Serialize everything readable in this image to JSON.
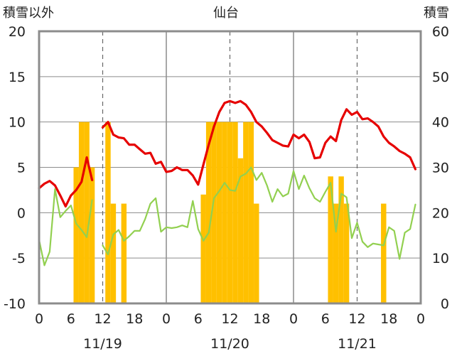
{
  "chart_data": {
    "type": "line",
    "title": "仙台",
    "ylabel_left": "積雪以外",
    "ylabel_right": "積雪",
    "ylim_left": [
      -10,
      20
    ],
    "ylim_right": [
      0,
      60
    ],
    "yticks_left": [
      "20",
      "15",
      "10",
      "5",
      "0",
      "-5",
      "-10"
    ],
    "yticks_right": [
      "60",
      "50",
      "40",
      "30",
      "20",
      "10",
      "0"
    ],
    "xlim": [
      0,
      72
    ],
    "xticks": [
      {
        "x": 0,
        "label": "0"
      },
      {
        "x": 6,
        "label": "6"
      },
      {
        "x": 12,
        "label": "12"
      },
      {
        "x": 18,
        "label": "18"
      },
      {
        "x": 24,
        "label": "0"
      },
      {
        "x": 30,
        "label": "6"
      },
      {
        "x": 36,
        "label": "12"
      },
      {
        "x": 42,
        "label": "18"
      },
      {
        "x": 48,
        "label": "0"
      },
      {
        "x": 54,
        "label": "6"
      },
      {
        "x": 60,
        "label": "12"
      },
      {
        "x": 66,
        "label": "18"
      },
      {
        "x": 72,
        "label": "0"
      }
    ],
    "date_labels": [
      {
        "x": 12,
        "label": "11/19"
      },
      {
        "x": 36,
        "label": "11/20"
      },
      {
        "x": 60,
        "label": "11/21"
      }
    ],
    "day_boundaries": [
      24,
      48
    ],
    "noon_lines": [
      12,
      36,
      60
    ],
    "series": [
      {
        "color": "#e60000",
        "axis": "left",
        "segments": [
          [
            [
              0,
              2.7
            ],
            [
              1,
              3.2
            ],
            [
              2,
              3.5
            ],
            [
              3,
              3.0
            ],
            [
              4,
              1.9
            ],
            [
              5,
              0.7
            ],
            [
              6,
              1.9
            ],
            [
              7,
              2.5
            ],
            [
              8,
              3.4
            ],
            [
              9,
              6.1
            ],
            [
              10,
              3.6
            ]
          ],
          [
            [
              12,
              9.4
            ],
            [
              13,
              10.0
            ],
            [
              14,
              8.6
            ],
            [
              15,
              8.3
            ],
            [
              16,
              8.2
            ],
            [
              17,
              7.5
            ],
            [
              18,
              7.5
            ],
            [
              19,
              7.0
            ],
            [
              20,
              6.5
            ],
            [
              21,
              6.6
            ],
            [
              22,
              5.4
            ],
            [
              23,
              5.6
            ],
            [
              24,
              4.5
            ],
            [
              25,
              4.6
            ],
            [
              26,
              5.0
            ],
            [
              27,
              4.7
            ],
            [
              28,
              4.7
            ],
            [
              29,
              4.1
            ],
            [
              30,
              3.1
            ],
            [
              31,
              5.3
            ],
            [
              32,
              7.5
            ],
            [
              33,
              9.5
            ],
            [
              34,
              11.1
            ],
            [
              35,
              12.1
            ],
            [
              36,
              12.3
            ],
            [
              37,
              12.1
            ],
            [
              38,
              12.3
            ],
            [
              39,
              11.9
            ],
            [
              40,
              11.1
            ],
            [
              41,
              10.0
            ],
            [
              42,
              9.5
            ],
            [
              43,
              8.8
            ],
            [
              44,
              8.0
            ],
            [
              45,
              7.7
            ],
            [
              46,
              7.4
            ],
            [
              47,
              7.3
            ],
            [
              48,
              8.6
            ],
            [
              49,
              8.2
            ],
            [
              50,
              8.6
            ],
            [
              51,
              7.8
            ],
            [
              52,
              6.0
            ],
            [
              53,
              6.1
            ],
            [
              54,
              7.7
            ],
            [
              55,
              8.4
            ],
            [
              56,
              7.9
            ],
            [
              57,
              10.2
            ],
            [
              58,
              11.4
            ],
            [
              59,
              10.8
            ],
            [
              60,
              11.1
            ],
            [
              61,
              10.3
            ],
            [
              62,
              10.4
            ],
            [
              63,
              10.0
            ],
            [
              64,
              9.5
            ],
            [
              65,
              8.4
            ],
            [
              66,
              7.7
            ],
            [
              67,
              7.3
            ],
            [
              68,
              6.8
            ],
            [
              69,
              6.5
            ],
            [
              70,
              6.1
            ],
            [
              71,
              4.8
            ]
          ]
        ]
      },
      {
        "color": "#92d050",
        "axis": "left",
        "segments": [
          [
            [
              0,
              -3.0
            ],
            [
              1,
              -5.8
            ],
            [
              2,
              -4.3
            ],
            [
              3,
              2.6
            ],
            [
              4,
              -0.5
            ],
            [
              5,
              0.2
            ],
            [
              6,
              0.8
            ],
            [
              7,
              -1.2
            ],
            [
              8,
              -1.9
            ],
            [
              9,
              -2.7
            ],
            [
              10,
              1.4
            ]
          ],
          [
            [
              12,
              -3.6
            ],
            [
              13,
              -4.6
            ],
            [
              14,
              -2.4
            ],
            [
              15,
              -1.9
            ],
            [
              16,
              -3.1
            ],
            [
              17,
              -2.6
            ],
            [
              18,
              -2.0
            ],
            [
              19,
              -2.0
            ],
            [
              20,
              -0.7
            ],
            [
              21,
              1.0
            ],
            [
              22,
              1.6
            ],
            [
              23,
              -2.1
            ],
            [
              24,
              -1.6
            ],
            [
              25,
              -1.7
            ],
            [
              26,
              -1.6
            ],
            [
              27,
              -1.4
            ],
            [
              28,
              -1.6
            ],
            [
              29,
              1.3
            ],
            [
              30,
              -1.8
            ],
            [
              31,
              -3.1
            ],
            [
              32,
              -2.2
            ],
            [
              33,
              1.6
            ],
            [
              34,
              2.4
            ],
            [
              35,
              3.3
            ],
            [
              36,
              2.5
            ],
            [
              37,
              2.4
            ],
            [
              38,
              4.0
            ],
            [
              39,
              4.3
            ],
            [
              40,
              5.0
            ],
            [
              41,
              3.6
            ],
            [
              42,
              4.4
            ],
            [
              43,
              3.0
            ],
            [
              44,
              1.2
            ],
            [
              45,
              2.6
            ],
            [
              46,
              1.8
            ],
            [
              47,
              2.1
            ],
            [
              48,
              4.6
            ],
            [
              49,
              2.6
            ],
            [
              50,
              4.1
            ],
            [
              51,
              2.7
            ],
            [
              52,
              1.6
            ],
            [
              53,
              1.2
            ],
            [
              54,
              2.3
            ],
            [
              55,
              3.3
            ],
            [
              56,
              -2.1
            ],
            [
              57,
              2.1
            ],
            [
              58,
              1.7
            ],
            [
              59,
              -2.8
            ],
            [
              60,
              -1.1
            ],
            [
              61,
              -3.2
            ],
            [
              62,
              -3.8
            ],
            [
              63,
              -3.4
            ],
            [
              64,
              -3.5
            ],
            [
              65,
              -3.6
            ],
            [
              66,
              -1.6
            ],
            [
              67,
              -2.0
            ],
            [
              68,
              -5.1
            ],
            [
              69,
              -2.2
            ],
            [
              70,
              -1.8
            ],
            [
              71,
              0.9
            ]
          ]
        ]
      },
      {
        "color": "#7030a0",
        "axis": "left",
        "segments": [
          [
            [
              0,
              -10
            ],
            [
              71.5,
              -10
            ]
          ]
        ]
      }
    ],
    "bars": {
      "color": "#ffc000",
      "axis": "right",
      "data": [
        {
          "x": 7,
          "v": 30
        },
        {
          "x": 8,
          "v": 40
        },
        {
          "x": 9,
          "v": 40
        },
        {
          "x": 10,
          "v": 30
        },
        {
          "x": 13,
          "v": 40
        },
        {
          "x": 14,
          "v": 22
        },
        {
          "x": 16,
          "v": 22
        },
        {
          "x": 31,
          "v": 24
        },
        {
          "x": 32,
          "v": 40
        },
        {
          "x": 33,
          "v": 40
        },
        {
          "x": 34,
          "v": 40
        },
        {
          "x": 35,
          "v": 40
        },
        {
          "x": 36,
          "v": 40
        },
        {
          "x": 37,
          "v": 40
        },
        {
          "x": 38,
          "v": 32
        },
        {
          "x": 39,
          "v": 40
        },
        {
          "x": 40,
          "v": 40
        },
        {
          "x": 41,
          "v": 22
        },
        {
          "x": 55,
          "v": 28
        },
        {
          "x": 56,
          "v": 22
        },
        {
          "x": 57,
          "v": 28
        },
        {
          "x": 58,
          "v": 22
        },
        {
          "x": 65,
          "v": 22
        }
      ]
    }
  }
}
